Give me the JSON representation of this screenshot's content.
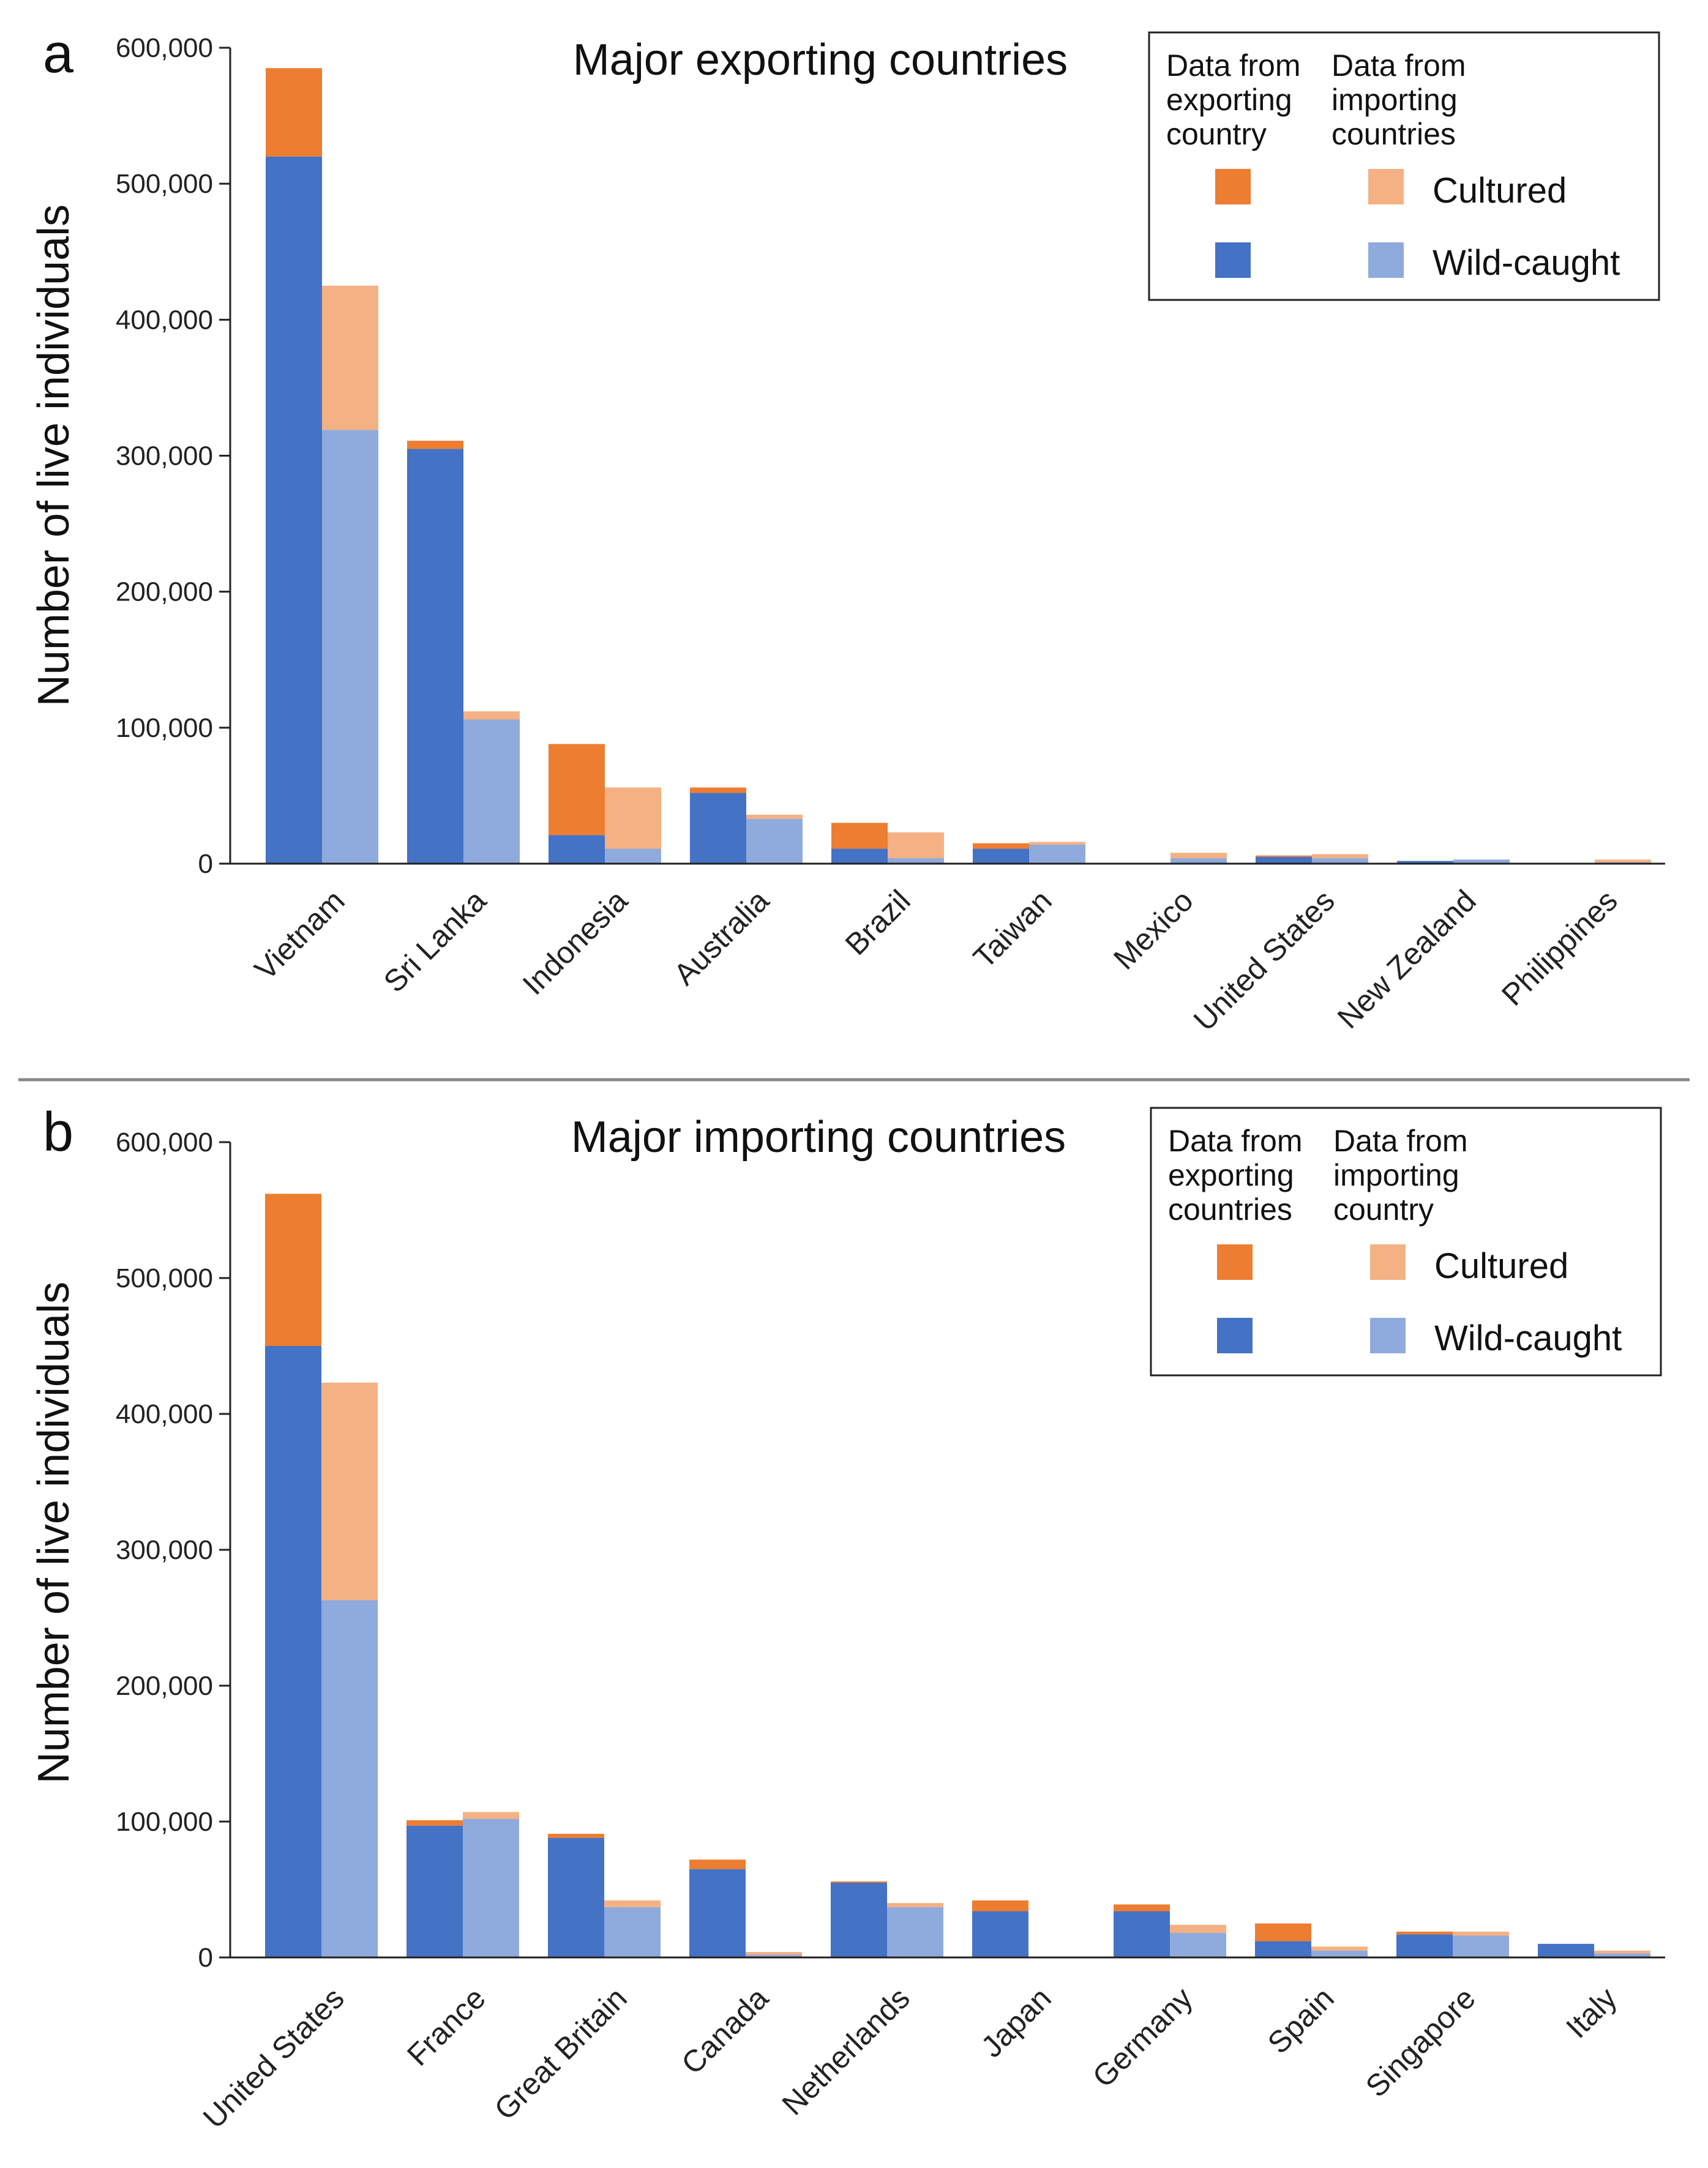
{
  "colors": {
    "export_wild": "#4472c4",
    "export_cultured": "#ed7d31",
    "import_wild": "#8faadc",
    "import_cultured": "#f4b183",
    "axis": "#222222",
    "divider": "#888888"
  },
  "chart_data": [
    {
      "type": "bar",
      "panel_label": "a",
      "title": "Major exporting countries",
      "ylabel": "Number of live individuals",
      "xlabel": "",
      "ylim": [
        0,
        600000
      ],
      "ytick_values": [
        0,
        100000,
        200000,
        300000,
        400000,
        500000,
        600000
      ],
      "ytick_labels": [
        "0",
        "100,000",
        "200,000",
        "300,000",
        "400,000",
        "500,000",
        "600,000"
      ],
      "legend": {
        "col1_header": [
          "Data from",
          "exporting",
          "country"
        ],
        "col2_header": [
          "Data from",
          "importing",
          "countries"
        ],
        "cultured_label": "Cultured",
        "wild_label": "Wild-caught",
        "placement": "top-right"
      },
      "categories": [
        "Vietnam",
        "Sri Lanka",
        "Indonesia",
        "Australia",
        "Brazil",
        "Taiwan",
        "Mexico",
        "United States",
        "New Zealand",
        "Philippines"
      ],
      "series": [
        {
          "name": "Exporting country data - Wild-caught",
          "stack": "exporting",
          "color_key": "export_wild",
          "values": [
            520000,
            305000,
            21000,
            52000,
            11000,
            11000,
            0,
            5000,
            2000,
            0
          ]
        },
        {
          "name": "Exporting country data - Cultured",
          "stack": "exporting",
          "color_key": "export_cultured",
          "values": [
            65000,
            6000,
            67000,
            4000,
            19000,
            4000,
            0,
            1000,
            0,
            0
          ]
        },
        {
          "name": "Importing country data - Wild-caught",
          "stack": "importing",
          "color_key": "import_wild",
          "values": [
            319000,
            106000,
            11000,
            33000,
            4000,
            14000,
            4000,
            4000,
            3000,
            1000
          ]
        },
        {
          "name": "Importing country data - Cultured",
          "stack": "importing",
          "color_key": "import_cultured",
          "values": [
            106000,
            6000,
            45000,
            3000,
            19000,
            2000,
            4000,
            3000,
            0,
            2000
          ]
        }
      ]
    },
    {
      "type": "bar",
      "panel_label": "b",
      "title": "Major importing countries",
      "ylabel": "Number of live individuals",
      "xlabel": "",
      "ylim": [
        0,
        600000
      ],
      "ytick_values": [
        0,
        100000,
        200000,
        300000,
        400000,
        500000,
        600000
      ],
      "ytick_labels": [
        "0",
        "100,000",
        "200,000",
        "300,000",
        "400,000",
        "500,000",
        "600,000"
      ],
      "legend": {
        "col1_header": [
          "Data from",
          "exporting",
          "countries"
        ],
        "col2_header": [
          "Data from",
          "importing",
          "country"
        ],
        "cultured_label": "Cultured",
        "wild_label": "Wild-caught",
        "placement": "top-right"
      },
      "categories": [
        "United States",
        "France",
        "Great Britain",
        "Canada",
        "Netherlands",
        "Japan",
        "Germany",
        "Spain",
        "Singapore",
        "Italy"
      ],
      "series": [
        {
          "name": "Exporting country data - Wild-caught",
          "stack": "exporting",
          "color_key": "export_wild",
          "values": [
            450000,
            97000,
            88000,
            65000,
            55000,
            34000,
            34000,
            12000,
            17000,
            10000
          ]
        },
        {
          "name": "Exporting country data - Cultured",
          "stack": "exporting",
          "color_key": "export_cultured",
          "values": [
            112000,
            4000,
            3000,
            7000,
            1000,
            8000,
            5000,
            13000,
            2000,
            0
          ]
        },
        {
          "name": "Importing country data - Wild-caught",
          "stack": "importing",
          "color_key": "import_wild",
          "values": [
            263000,
            102000,
            37000,
            2000,
            37000,
            0,
            18000,
            5000,
            16000,
            3000
          ]
        },
        {
          "name": "Importing country data - Cultured",
          "stack": "importing",
          "color_key": "import_cultured",
          "values": [
            160000,
            5000,
            5000,
            2000,
            3000,
            0,
            6000,
            3000,
            3000,
            2000
          ]
        }
      ]
    }
  ]
}
